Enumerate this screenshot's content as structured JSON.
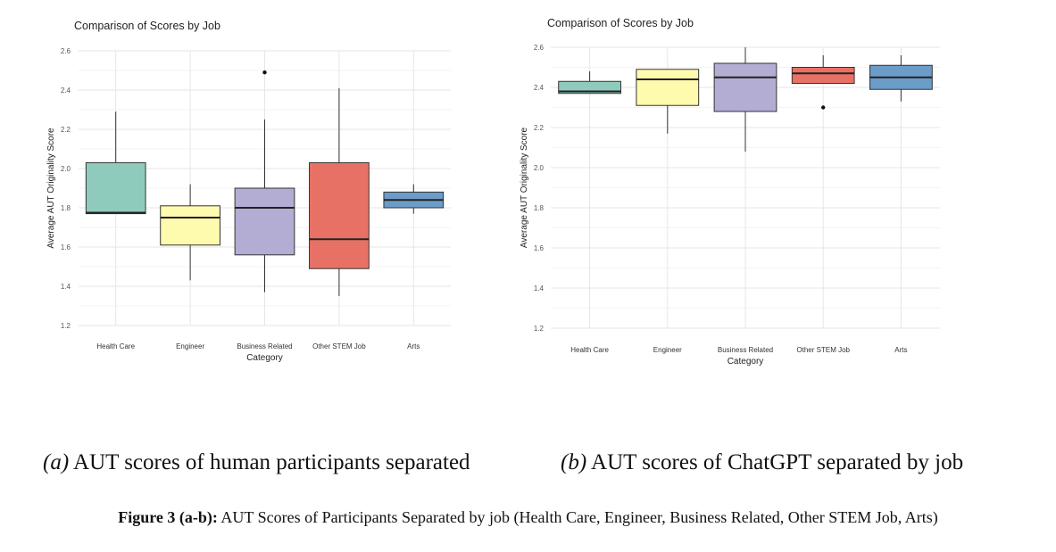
{
  "chart_data": [
    {
      "panel": "a",
      "type": "box",
      "title": "Comparison of Scores by Job",
      "xlabel": "Category",
      "ylabel": "Average AUT Originality Score",
      "ylim": [
        1.2,
        2.6
      ],
      "yticks": [
        "1.2",
        "1.4",
        "1.6",
        "1.8",
        "2.0",
        "2.2",
        "2.4",
        "2.6"
      ],
      "grid": true,
      "categories": [
        "Health Care",
        "Engineer",
        "Business Related",
        "Other STEM Job",
        "Arts"
      ],
      "boxes": [
        {
          "category": "Health Care",
          "min": 1.77,
          "q1": 1.77,
          "median": 1.775,
          "q3": 2.03,
          "max": 2.29,
          "outliers": [],
          "color": "#8ecbbd"
        },
        {
          "category": "Engineer",
          "min": 1.43,
          "q1": 1.61,
          "median": 1.75,
          "q3": 1.81,
          "max": 1.92,
          "outliers": [],
          "color": "#fefbae"
        },
        {
          "category": "Business Related",
          "min": 1.37,
          "q1": 1.56,
          "median": 1.8,
          "q3": 1.9,
          "max": 2.25,
          "outliers": [
            2.49
          ],
          "color": "#b3add3"
        },
        {
          "category": "Other STEM Job",
          "min": 1.35,
          "q1": 1.49,
          "median": 1.64,
          "q3": 2.03,
          "max": 2.41,
          "outliers": [],
          "color": "#e87165"
        },
        {
          "category": "Arts",
          "min": 1.77,
          "q1": 1.8,
          "median": 1.84,
          "q3": 1.88,
          "max": 1.92,
          "outliers": [],
          "color": "#6c9cc8"
        }
      ]
    },
    {
      "panel": "b",
      "type": "box",
      "title": "Comparison of Scores by Job",
      "xlabel": "Category",
      "ylabel": "Average AUT Originality Score",
      "ylim": [
        1.2,
        2.6
      ],
      "yticks": [
        "1.2",
        "1.4",
        "1.6",
        "1.8",
        "2.0",
        "2.2",
        "2.4",
        "2.6"
      ],
      "grid": true,
      "categories": [
        "Health Care",
        "Engineer",
        "Business Related",
        "Other STEM Job",
        "Arts"
      ],
      "boxes": [
        {
          "category": "Health Care",
          "min": 2.37,
          "q1": 2.37,
          "median": 2.38,
          "q3": 2.43,
          "max": 2.48,
          "outliers": [],
          "color": "#8ecbbd"
        },
        {
          "category": "Engineer",
          "min": 2.17,
          "q1": 2.31,
          "median": 2.44,
          "q3": 2.49,
          "max": 2.49,
          "outliers": [],
          "color": "#fefbae"
        },
        {
          "category": "Business Related",
          "min": 2.08,
          "q1": 2.28,
          "median": 2.45,
          "q3": 2.52,
          "max": 2.6,
          "outliers": [],
          "color": "#b3add3"
        },
        {
          "category": "Other STEM Job",
          "min": 2.42,
          "q1": 2.42,
          "median": 2.47,
          "q3": 2.5,
          "max": 2.56,
          "outliers": [
            2.3
          ],
          "color": "#e87165"
        },
        {
          "category": "Arts",
          "min": 2.33,
          "q1": 2.39,
          "median": 2.45,
          "q3": 2.51,
          "max": 2.56,
          "outliers": [],
          "color": "#6c9cc8"
        }
      ]
    }
  ],
  "captions": {
    "a": {
      "tag": "(a)",
      "text": " AUT scores of human participants separated"
    },
    "b": {
      "tag": "(b)",
      "text": " AUT scores of ChatGPT separated by job"
    }
  },
  "figure_caption": {
    "label": "Figure 3 (a-b):",
    "text": " AUT Scores of Participants Separated by job (Health Care, Engineer, Business Related, Other STEM Job, Arts)"
  }
}
